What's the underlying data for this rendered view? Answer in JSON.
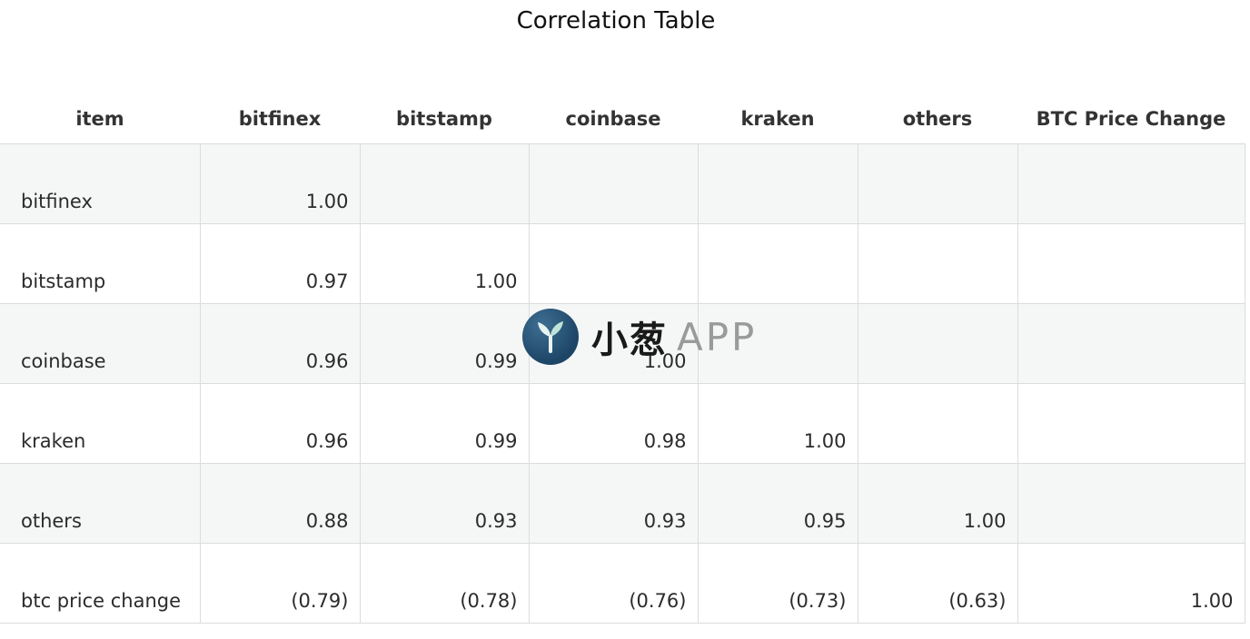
{
  "chart_data": {
    "type": "table",
    "title": "Correlation Table",
    "columns": [
      "item",
      "bitfinex",
      "bitstamp",
      "coinbase",
      "kraken",
      "others",
      "BTC Price Change"
    ],
    "rows": [
      {
        "label": "bitfinex",
        "values": [
          "1.00",
          "",
          "",
          "",
          "",
          ""
        ]
      },
      {
        "label": "bitstamp",
        "values": [
          "0.97",
          "1.00",
          "",
          "",
          "",
          ""
        ]
      },
      {
        "label": "coinbase",
        "values": [
          "0.96",
          "0.99",
          "1.00",
          "",
          "",
          ""
        ]
      },
      {
        "label": "kraken",
        "values": [
          "0.96",
          "0.99",
          "0.98",
          "1.00",
          "",
          ""
        ]
      },
      {
        "label": "others",
        "values": [
          "0.88",
          "0.93",
          "0.93",
          "0.95",
          "1.00",
          ""
        ]
      },
      {
        "label": "btc price change",
        "values": [
          "(0.79)",
          "(0.78)",
          "(0.76)",
          "(0.73)",
          "(0.63)",
          "1.00"
        ]
      }
    ]
  },
  "watermark": {
    "cn_text": "小葱",
    "app_text": "APP",
    "logo_icon": "sprout-y-logo-icon",
    "logo_color": "#1d4566"
  }
}
